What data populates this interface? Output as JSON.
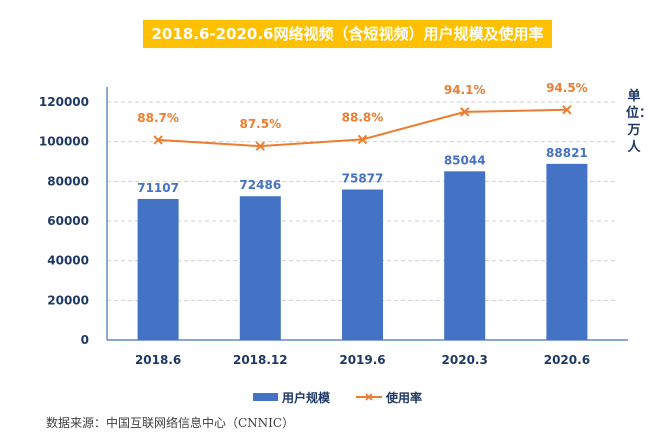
{
  "title": "2018.6-2020.6网络视频（含短视频）用户规模及使用率",
  "unit_label": "单位：万人",
  "source": "数据来源：中国互联网络信息中心（CNNIC）",
  "colors": {
    "bar": "#4472c4",
    "line": "#ed7d31",
    "title_bg": "#ffc000",
    "axis_text": "#1f3864"
  },
  "chart_data": {
    "type": "bar",
    "title": "2018.6-2020.6网络视频（含短视频）用户规模及使用率",
    "categories": [
      "2018.6",
      "2018.12",
      "2019.6",
      "2020.3",
      "2020.6"
    ],
    "series": [
      {
        "name": "用户规模",
        "type": "bar",
        "values": [
          71107,
          72486,
          75877,
          85044,
          88821
        ],
        "labels": [
          "71107",
          "72486",
          "75877",
          "85044",
          "88821"
        ]
      },
      {
        "name": "使用率",
        "type": "line",
        "values": [
          88.7,
          87.5,
          88.8,
          94.1,
          94.5
        ],
        "labels": [
          "88.7%",
          "87.5%",
          "88.8%",
          "94.1%",
          "94.5%"
        ],
        "axis": "secondary"
      }
    ],
    "ylim": [
      0,
      120000
    ],
    "yticks": [
      "0",
      "20000",
      "40000",
      "60000",
      "80000",
      "100000",
      "120000"
    ],
    "y2lim": [
      50.2,
      96.0
    ],
    "ylabel": "单位：万人",
    "xlabel": "",
    "grid": true,
    "legend": "bottom"
  }
}
